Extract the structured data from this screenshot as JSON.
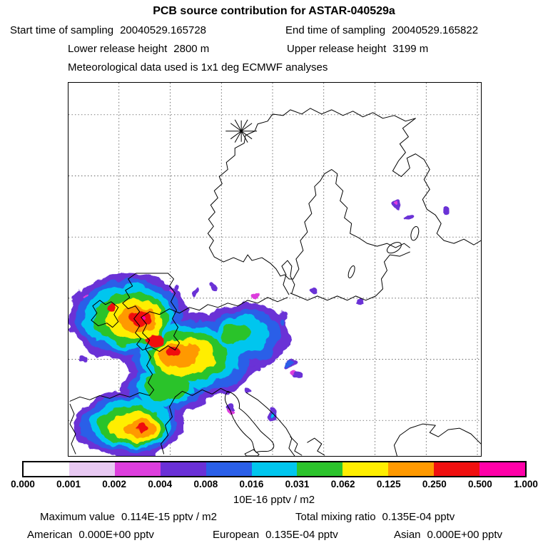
{
  "header": {
    "title": "PCB source contribution for ASTAR-040529a",
    "start_time_label": "Start time of sampling",
    "start_time_value": "20040529.165728",
    "end_time_label": "End time of sampling",
    "end_time_value": "20040529.165822",
    "lower_release_label": "Lower release height",
    "lower_release_value": "2800 m",
    "upper_release_label": "Upper release height",
    "upper_release_value": "3199 m",
    "met_data_line": "Meteorological data used is 1x1 deg ECMWF analyses"
  },
  "colorbar": {
    "tick_labels": [
      "0.000",
      "0.001",
      "0.002",
      "0.004",
      "0.008",
      "0.016",
      "0.031",
      "0.062",
      "0.125",
      "0.250",
      "0.500",
      "1.000"
    ],
    "segment_colors": [
      "#ffffff",
      "#e8c9f2",
      "#dd3edd",
      "#6a30d6",
      "#2a5fe8",
      "#00c6ee",
      "#2cc32c",
      "#ffee00",
      "#ff9900",
      "#f01010",
      "#ff00a8"
    ],
    "units_label": "10E-16 pptv / m2"
  },
  "stats": {
    "maximum_label": "Maximum value",
    "maximum_value": "0.114E-15 pptv / m2",
    "mixing_label": "Total mixing ratio",
    "mixing_value": "0.135E-04 pptv",
    "american_label": "American",
    "american_value": "0.000E+00 pptv",
    "european_label": "European",
    "european_value": "0.135E-04 pptv",
    "asian_label": "Asian",
    "asian_value": "0.000E+00 pptv"
  }
}
